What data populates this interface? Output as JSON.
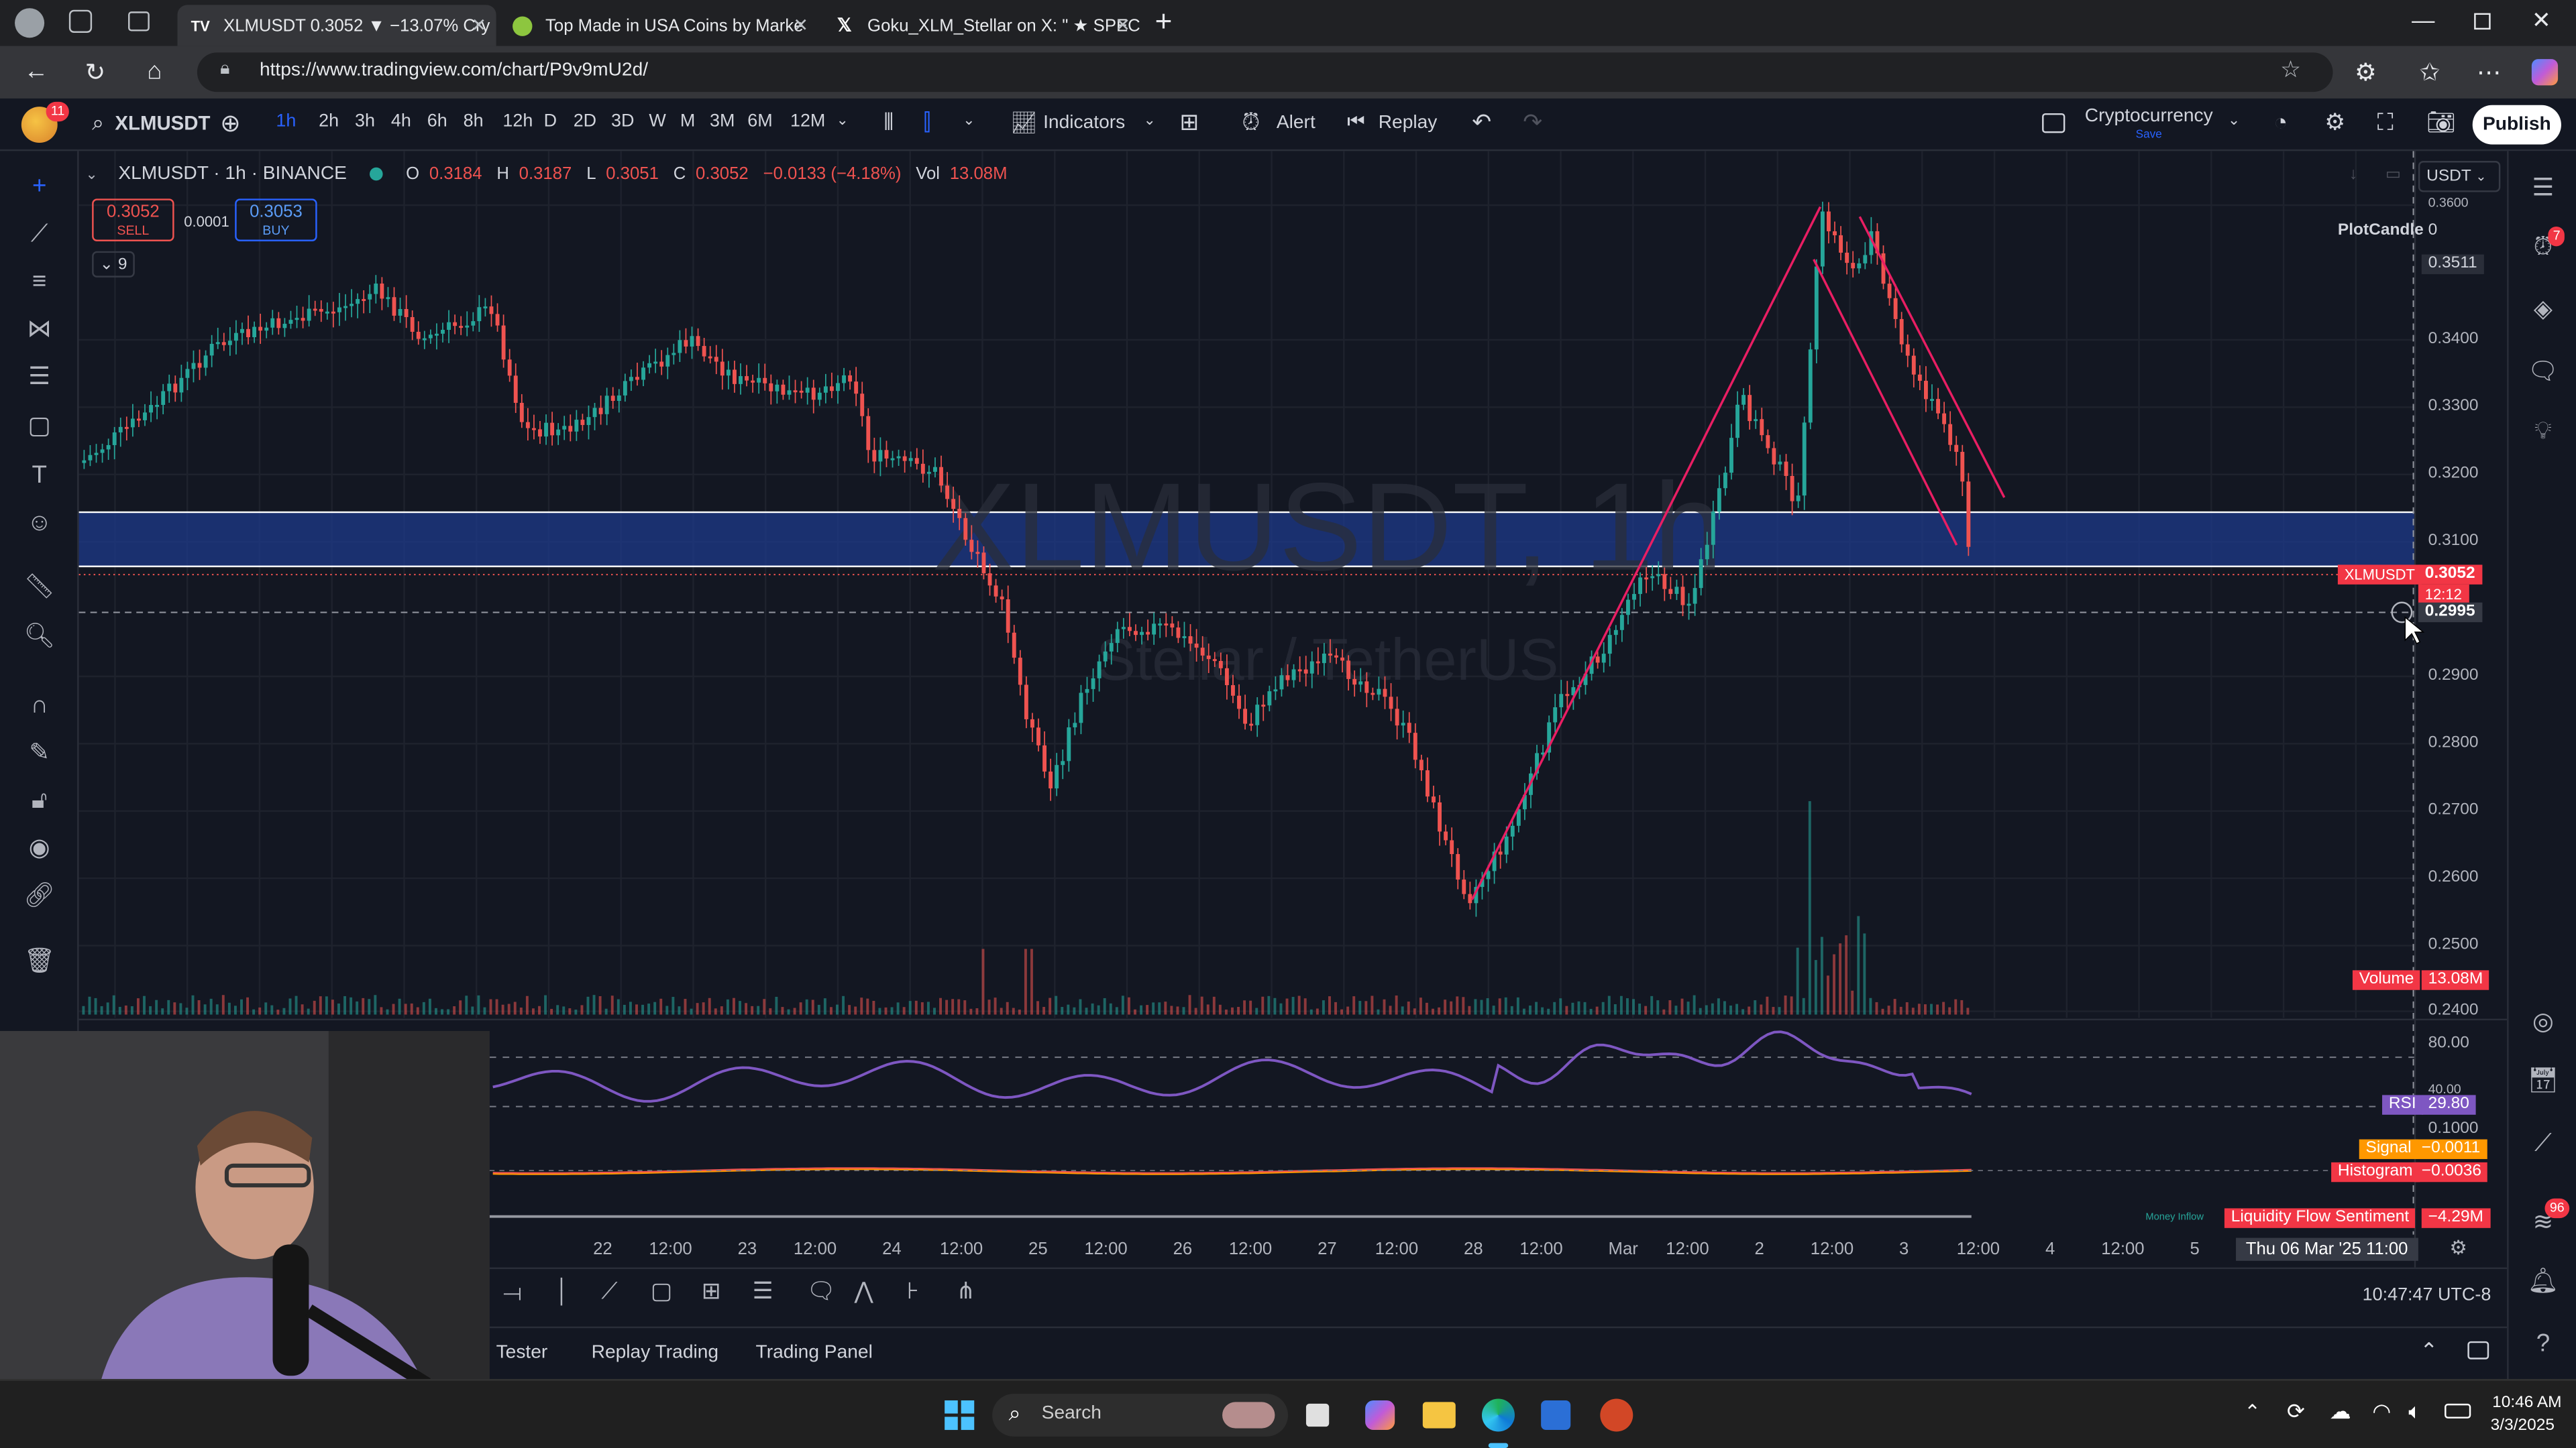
{
  "browser": {
    "tabs": [
      {
        "title": "XLMUSDT 0.3052 ▼ −13.07% Cry",
        "icon": "tradingview-icon"
      },
      {
        "title": "Top Made in USA Coins by Marke",
        "icon": "coingecko-icon"
      },
      {
        "title": "Goku_XLM_Stellar on X: \" ★ SPEC",
        "icon": "x-logo-icon"
      }
    ],
    "url": "https://www.tradingview.com/chart/P9v9mU2d/"
  },
  "toolbar": {
    "notification_count": "11",
    "symbol": "XLMUSDT",
    "intervals": [
      "1h",
      "2h",
      "3h",
      "4h",
      "6h",
      "8h",
      "12h",
      "D",
      "2D",
      "3D",
      "W",
      "M",
      "3M",
      "6M",
      "12M"
    ],
    "active_interval": "1h",
    "indicators_label": "Indicators",
    "alert_label": "Alert",
    "replay_label": "Replay",
    "layout_name": "Cryptocurrency",
    "layout_sub": "Save",
    "publish_label": "Publish"
  },
  "legend": {
    "title": "XLMUSDT · 1h · BINANCE",
    "o": "0.3184",
    "h": "0.3187",
    "l": "0.3051",
    "c": "0.3052",
    "change": "−0.0133 (−4.18%)",
    "vol": "13.08M",
    "sell_price": "0.3052",
    "sell_label": "SELL",
    "spread": "0.0001",
    "buy_price": "0.3053",
    "buy_label": "BUY",
    "indicators_count": "9"
  },
  "watermark": {
    "symbol": "XLMUSDT, 1h",
    "name": "Stellar / TetherUS"
  },
  "price_axis": {
    "currency": "USDT",
    "ticks": [
      "0.3600",
      "0.3400",
      "0.3300",
      "0.3200",
      "0.3100",
      "0.2900",
      "0.2800",
      "0.2700",
      "0.2600",
      "0.2500",
      "0.2400"
    ],
    "plot_candle_label": "PlotCandle",
    "plot_candle_value": "0",
    "high_label": "0.3511",
    "current_symbol": "XLMUSDT",
    "current_price": "0.3052",
    "countdown": "12:12",
    "crosshair_price": "0.2995",
    "volume_label": "Volume",
    "volume_value": "13.08M"
  },
  "rsi": {
    "upper": "80.00",
    "mid": "40.00",
    "label": "RSI",
    "value": "29.80"
  },
  "macd": {
    "top": "0.1000",
    "signal_label": "Signal",
    "signal_value": "−0.0011",
    "hist_label": "Histogram",
    "hist_value": "−0.0036"
  },
  "liquidity": {
    "small_label": "Money Inflow",
    "label": "Liquidity Flow Sentiment",
    "value": "−4.29M"
  },
  "time_axis": {
    "labels": [
      "22",
      "12:00",
      "23",
      "12:00",
      "24",
      "12:00",
      "25",
      "12:00",
      "26",
      "12:00",
      "27",
      "12:00",
      "28",
      "12:00",
      "Mar",
      "12:00",
      "2",
      "12:00",
      "3",
      "12:00",
      "4",
      "12:00",
      "5"
    ],
    "crosshair_time": "Thu 06 Mar '25   11:00"
  },
  "clock": "10:47:47 UTC-8",
  "bottom_tabs": [
    "Tester",
    "Replay Trading",
    "Trading Panel"
  ],
  "taskbar": {
    "search_placeholder": "Search",
    "time": "10:46 AM",
    "date": "3/3/2025"
  },
  "badges": {
    "alerts": "7",
    "notifications": "96"
  },
  "colors": {
    "up": "#26a69a",
    "down": "#ef5350",
    "accent": "#2962ff",
    "trendline": "#e91e63",
    "rsi": "#7e57c2",
    "zone": "#1e3a8a"
  }
}
